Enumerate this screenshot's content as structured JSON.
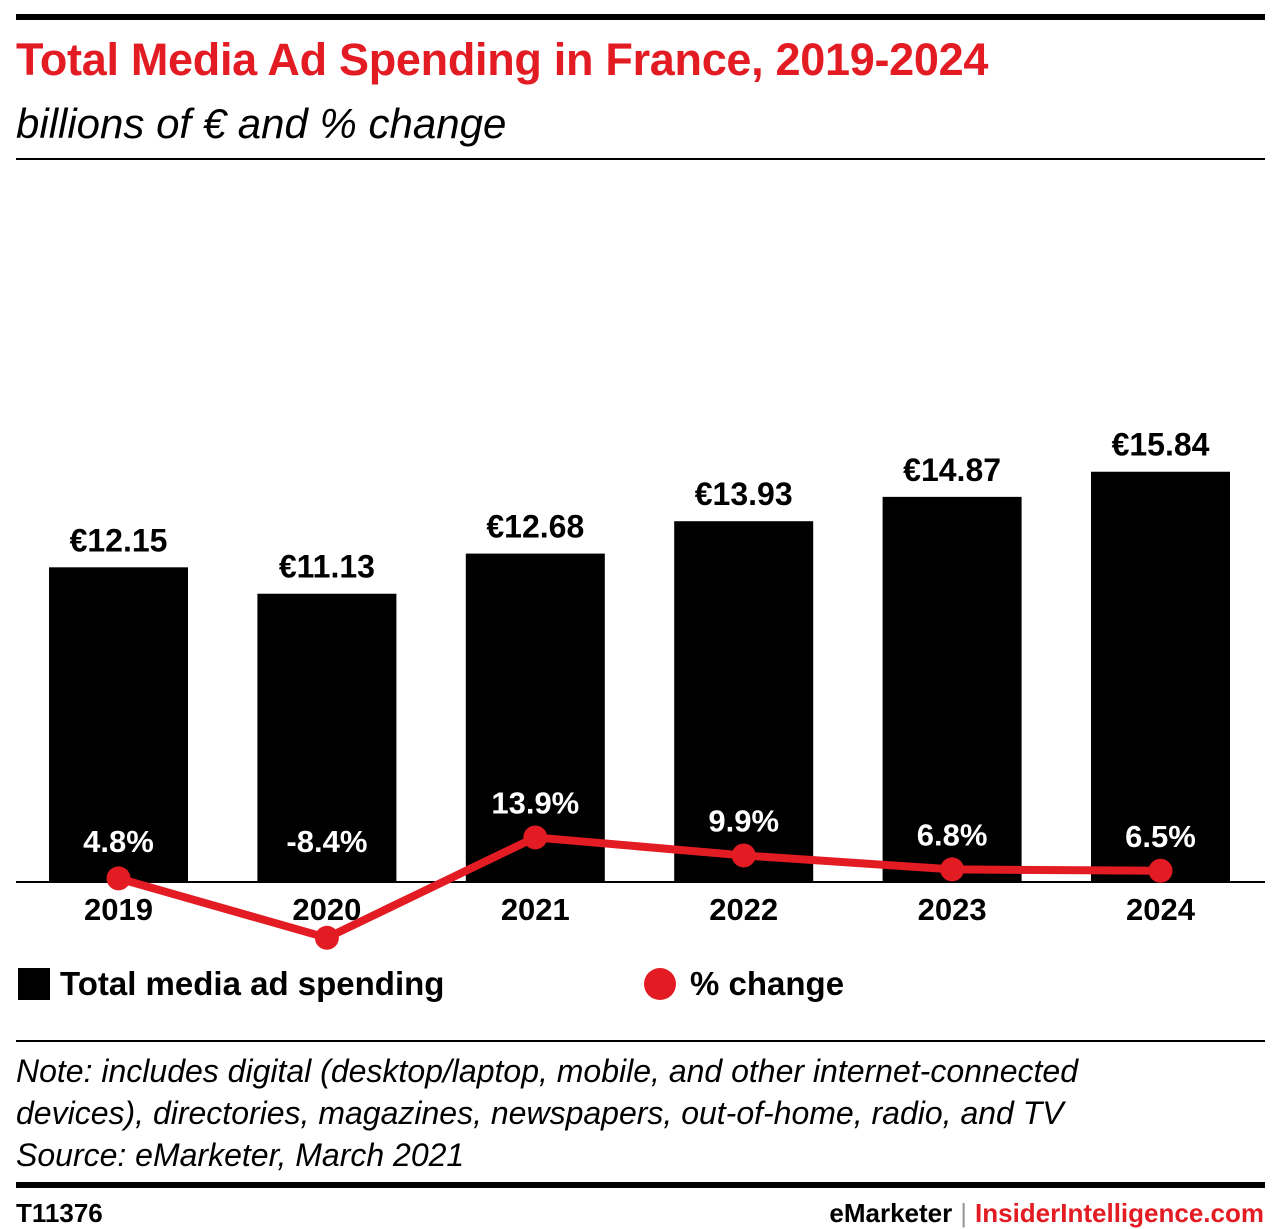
{
  "header": {
    "title": "Total Media Ad Spending in France, 2019-2024",
    "subtitle": "billions of € and % change"
  },
  "chart_data": {
    "type": "bar",
    "categories": [
      "2019",
      "2020",
      "2021",
      "2022",
      "2023",
      "2024"
    ],
    "series": [
      {
        "name": "Total media ad spending",
        "type": "bar",
        "values": [
          12.15,
          11.13,
          12.68,
          13.93,
          14.87,
          15.84
        ],
        "labels": [
          "€12.15",
          "€11.13",
          "€12.68",
          "€13.93",
          "€14.87",
          "€15.84"
        ],
        "color": "#000000"
      },
      {
        "name": "% change",
        "type": "line",
        "values": [
          4.8,
          -8.4,
          13.9,
          9.9,
          6.8,
          6.5
        ],
        "labels": [
          "4.8%",
          "-8.4%",
          "13.9%",
          "9.9%",
          "6.8%",
          "6.5%"
        ],
        "color": "#e31b23"
      }
    ],
    "grid": false,
    "legend": "bottom"
  },
  "legend": {
    "bar_label": "Total media ad spending",
    "line_label": "% change"
  },
  "notes": {
    "line1": "Note: includes digital (desktop/laptop, mobile, and other internet-connected",
    "line2": "devices), directories, magazines, newspapers, out-of-home, radio, and TV",
    "line3": "Source: eMarketer, March 2021"
  },
  "footer": {
    "id": "T11376",
    "brand1": "eMarketer",
    "separator": "|",
    "brand2": "InsiderIntelligence.com"
  }
}
